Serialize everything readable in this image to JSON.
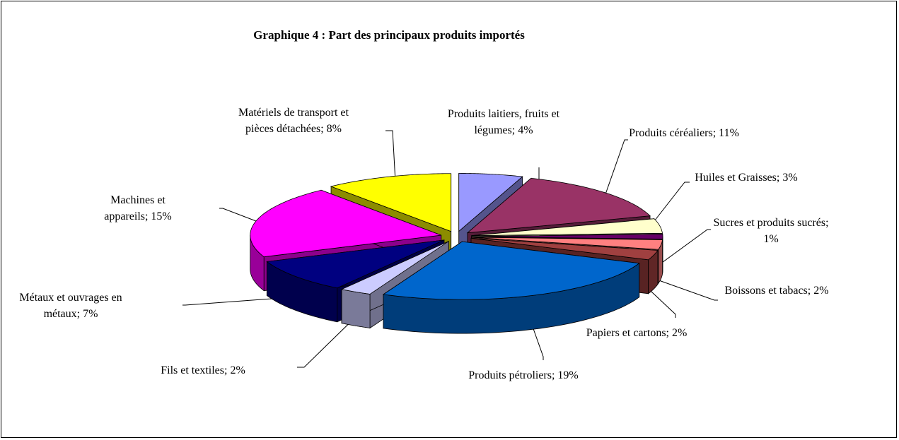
{
  "chart_data": {
    "type": "pie3d",
    "title": "Graphique 4 : Part des principaux produits importés",
    "values": [
      4,
      11,
      3,
      1,
      2,
      2,
      19,
      2,
      7,
      15,
      8
    ],
    "value_labels": [
      "Produits laitiers, fruits et légumes; 4%",
      "Produits céréaliers; 11%",
      "Huiles et Graisses; 3%",
      "Sucres et produits sucrés; 1%",
      "Boissons et tabacs; 2%",
      "Papiers et cartons; 2%",
      "Produits pétroliers; 19%",
      "Fils et textiles; 2%",
      "Métaux et ouvrages en métaux; 7%",
      "Machines et appareils; 15%",
      "Matériels de transport et pièces détachées; 8%"
    ],
    "colors": [
      "#9999ff",
      "#993366",
      "#ffffcc",
      "#660066",
      "#ff8080",
      "#a04040",
      "#0066cc",
      "#ccccff",
      "#000080",
      "#ff00ff",
      "#ffff00"
    ]
  }
}
